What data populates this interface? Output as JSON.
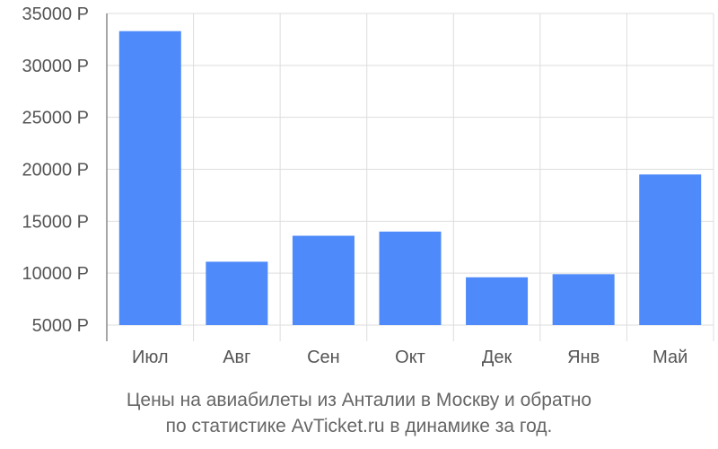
{
  "chart_data": {
    "type": "bar",
    "categories": [
      "Июл",
      "Авг",
      "Сен",
      "Окт",
      "Дек",
      "Янв",
      "Май"
    ],
    "values": [
      33300,
      11100,
      13600,
      14000,
      9600,
      9900,
      19500
    ],
    "ylim": [
      5000,
      35000
    ],
    "yticks": [
      5000,
      10000,
      15000,
      20000,
      25000,
      30000,
      35000
    ],
    "ytick_labels": [
      "5000 Р",
      "10000 Р",
      "15000 Р",
      "20000 Р",
      "25000 Р",
      "30000 Р",
      "35000 Р"
    ],
    "grid": true,
    "bar_color": "#4e8af9",
    "grid_color": "#dddddd",
    "axis_color": "#888888"
  },
  "caption": {
    "line1": "Цены на авиабилеты из Анталии в Москву и обратно",
    "line2": "по статистике AvTicket.ru в динамике за год."
  }
}
